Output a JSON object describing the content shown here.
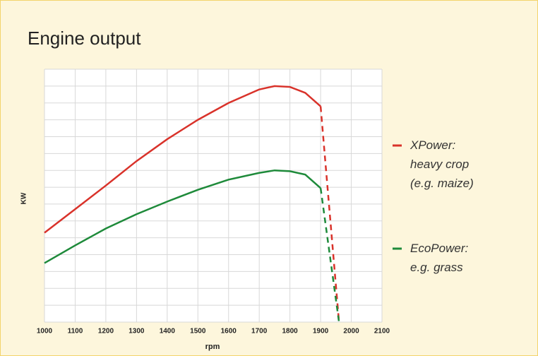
{
  "chart_data": {
    "type": "line",
    "title": "Engine output",
    "xlabel": "rpm",
    "ylabel": "KW",
    "x": [
      1000,
      1100,
      1200,
      1300,
      1400,
      1500,
      1600,
      1700,
      1750,
      1800,
      1850,
      1900,
      1960
    ],
    "series": [
      {
        "name": "XPower:\nheavy crop\n(e.g. maize)",
        "color": "#d9322a",
        "values": [
          5.3,
          6.7,
          8.1,
          9.55,
          10.85,
          12.0,
          13.0,
          13.8,
          14.0,
          13.95,
          13.6,
          12.8,
          0
        ]
      },
      {
        "name": "EcoPower:\ne.g. grass",
        "color": "#1e8a3a",
        "values": [
          3.5,
          4.55,
          5.55,
          6.4,
          7.15,
          7.85,
          8.45,
          8.85,
          9.0,
          8.95,
          8.75,
          7.95,
          0
        ]
      }
    ],
    "dashed_last_segment": true,
    "xlim": [
      1000,
      2100
    ],
    "xticks": [
      1000,
      1100,
      1200,
      1300,
      1400,
      1500,
      1600,
      1700,
      1800,
      1900,
      2000,
      2100
    ],
    "ylim": [
      0,
      15
    ],
    "yticks": [
      0,
      1,
      2,
      3,
      4,
      5,
      6,
      7,
      8,
      9,
      10,
      11,
      12,
      13,
      14,
      15
    ],
    "grid": true
  }
}
